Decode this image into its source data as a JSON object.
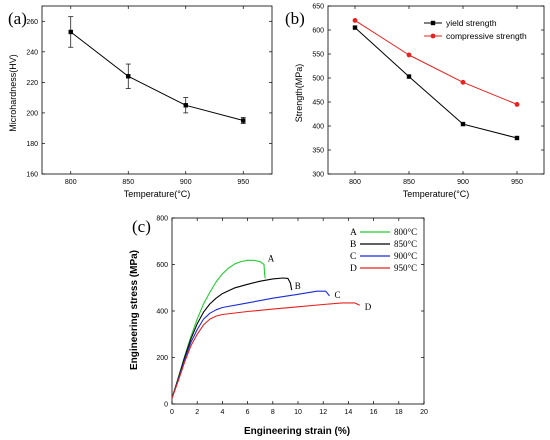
{
  "chart_data": [
    {
      "type": "line",
      "panel_label": "(a)",
      "xlabel": "Temperature(°C)",
      "ylabel": "Microhardness(HV)",
      "xlim": [
        775,
        975
      ],
      "ylim": [
        160,
        270
      ],
      "x_ticks": [
        "800",
        "850",
        "900",
        "950"
      ],
      "y_ticks": [
        "160",
        "180",
        "200",
        "220",
        "240",
        "260"
      ],
      "series": [
        {
          "color": "#000000",
          "x": [
            800,
            850,
            900,
            950
          ],
          "values": [
            253,
            224,
            205,
            195
          ],
          "error": [
            10,
            8,
            5,
            2
          ]
        }
      ]
    },
    {
      "type": "line",
      "panel_label": "(b)",
      "xlabel": "Temperature(°C)",
      "ylabel": "Strength(MPa)",
      "xlim": [
        775,
        975
      ],
      "ylim": [
        300,
        650
      ],
      "x_ticks": [
        "800",
        "850",
        "900",
        "950"
      ],
      "y_ticks": [
        "300",
        "350",
        "400",
        "450",
        "500",
        "550",
        "600",
        "650"
      ],
      "legend_position": "top-right",
      "series": [
        {
          "name": "yield strength",
          "color": "#000000",
          "marker": "square",
          "x": [
            800,
            850,
            900,
            950
          ],
          "values": [
            605,
            503,
            404,
            375
          ]
        },
        {
          "name": "compressive strength",
          "color": "#e8201e",
          "marker": "circle",
          "x": [
            800,
            850,
            900,
            950
          ],
          "values": [
            620,
            548,
            491,
            445
          ]
        }
      ]
    },
    {
      "type": "line",
      "panel_label": "(c)",
      "xlabel": "Engineering strain (%)",
      "ylabel": "Engineering stress (MPa)",
      "xlim": [
        0,
        20
      ],
      "ylim": [
        0,
        800
      ],
      "x_ticks": [
        "0",
        "2",
        "4",
        "6",
        "8",
        "10",
        "12",
        "14",
        "16",
        "18",
        "20"
      ],
      "y_ticks": [
        "0",
        "200",
        "400",
        "600",
        "800"
      ],
      "legend_position": "top-right",
      "series": [
        {
          "name": "800°C",
          "letter": "A",
          "color": "#22cc33",
          "x": [
            0,
            0.5,
            1,
            1.5,
            2,
            2.5,
            3,
            3.5,
            4,
            4.5,
            5,
            5.5,
            6,
            6.5,
            7,
            7.3,
            7.35,
            7.4
          ],
          "values": [
            25,
            115,
            205,
            290,
            365,
            430,
            480,
            525,
            560,
            585,
            603,
            613,
            618,
            618,
            612,
            600,
            560,
            540
          ]
        },
        {
          "name": "850°C",
          "letter": "B",
          "color": "#000000",
          "x": [
            0,
            0.5,
            1,
            1.5,
            2,
            2.5,
            3,
            3.5,
            4,
            5,
            6,
            7,
            8,
            8.8,
            9.2,
            9.4,
            9.5
          ],
          "values": [
            25,
            110,
            200,
            280,
            345,
            395,
            430,
            455,
            475,
            500,
            515,
            528,
            538,
            542,
            540,
            520,
            490
          ]
        },
        {
          "name": "900°C",
          "letter": "C",
          "color": "#1a2bd6",
          "x": [
            0,
            0.5,
            1,
            1.5,
            2,
            2.5,
            3,
            3.5,
            4,
            6,
            8,
            10,
            11.5,
            12.2,
            12.5
          ],
          "values": [
            25,
            105,
            190,
            265,
            320,
            365,
            390,
            405,
            415,
            435,
            455,
            472,
            485,
            485,
            465
          ]
        },
        {
          "name": "950°C",
          "letter": "D",
          "color": "#e8201e",
          "x": [
            0,
            0.5,
            1,
            1.5,
            2,
            2.5,
            3,
            3.5,
            4,
            6,
            8,
            10,
            12,
            13.5,
            14.5,
            14.9
          ],
          "values": [
            25,
            100,
            180,
            250,
            300,
            340,
            365,
            378,
            385,
            398,
            408,
            418,
            428,
            435,
            435,
            425
          ]
        }
      ]
    }
  ]
}
